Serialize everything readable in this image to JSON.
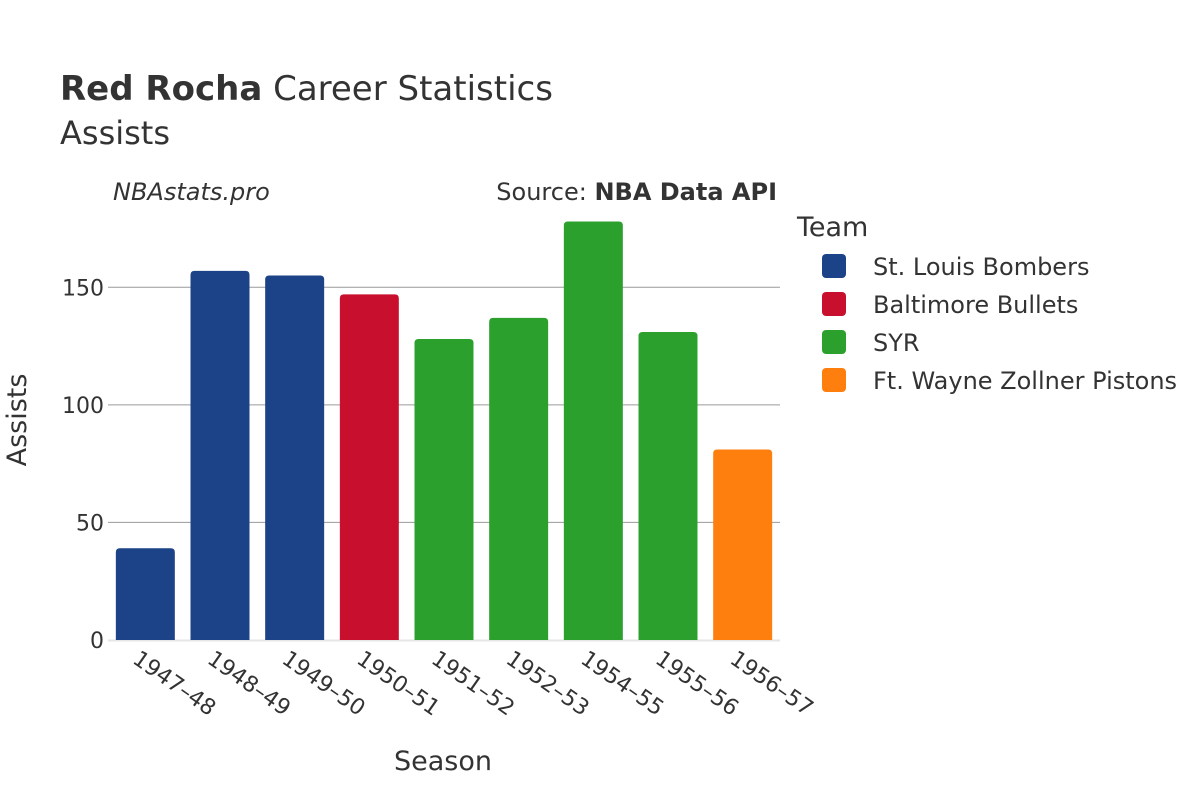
{
  "header": {
    "title_bold": "Red Rocha",
    "title_rest": " Career Statistics",
    "subtitle": "Assists"
  },
  "watermark": "NBAstats.pro",
  "source": {
    "label": "Source: ",
    "name": "NBA Data API"
  },
  "legend": {
    "title": "Team",
    "placement": "right",
    "items": [
      {
        "name": "St. Louis Bombers",
        "color": "#1c4288"
      },
      {
        "name": "Baltimore Bullets",
        "color": "#c8102e"
      },
      {
        "name": "SYR",
        "color": "#2ca02c"
      },
      {
        "name": "Ft. Wayne Zollner Pistons",
        "color": "#ff7f0e"
      }
    ]
  },
  "chart_data": {
    "type": "bar",
    "title": "Red Rocha Career Statistics",
    "subtitle": "Assists",
    "xlabel": "Season",
    "ylabel": "Assists",
    "ylim": [
      0,
      185
    ],
    "yticks": [
      0,
      50,
      100,
      150
    ],
    "grid": true,
    "categories": [
      "1947–48",
      "1948–49",
      "1949–50",
      "1950–51",
      "1951–52",
      "1952–53",
      "1954–55",
      "1955–56",
      "1956–57"
    ],
    "values": [
      39,
      157,
      155,
      147,
      128,
      137,
      178,
      131,
      81
    ],
    "teams": [
      "St. Louis Bombers",
      "St. Louis Bombers",
      "St. Louis Bombers",
      "Baltimore Bullets",
      "SYR",
      "SYR",
      "SYR",
      "SYR",
      "Ft. Wayne Zollner Pistons"
    ]
  }
}
